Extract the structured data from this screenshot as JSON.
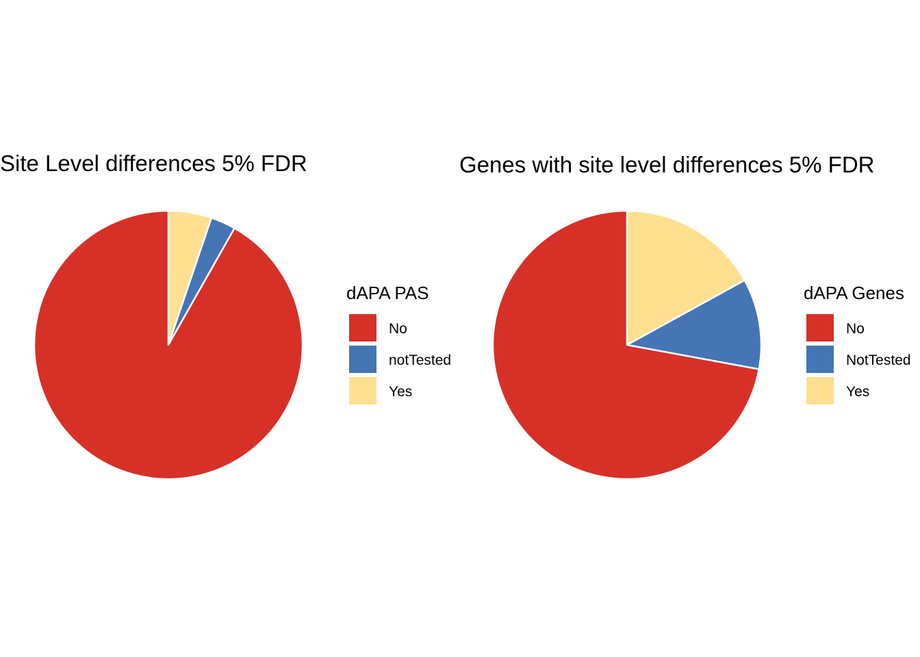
{
  "chart_data": [
    {
      "type": "pie",
      "title": "Site Level differences 5% FDR",
      "legend_title": "dAPA PAS",
      "legend_position": "right",
      "start_angle": "12 o'clock, clockwise",
      "slices": [
        {
          "label": "Yes",
          "value": 5.2,
          "color": "#FEE090"
        },
        {
          "label": "notTested",
          "value": 3.0,
          "color": "#4575B4"
        },
        {
          "label": "No",
          "value": 91.8,
          "color": "#D73027"
        }
      ],
      "legend_order": [
        "No",
        "notTested",
        "Yes"
      ]
    },
    {
      "type": "pie",
      "title": "Genes with site level differences 5% FDR",
      "legend_title": "dAPA Genes",
      "legend_position": "right",
      "start_angle": "12 o'clock, clockwise",
      "slices": [
        {
          "label": "Yes",
          "value": 17.0,
          "color": "#FEE090"
        },
        {
          "label": "NotTested",
          "value": 10.9,
          "color": "#4575B4"
        },
        {
          "label": "No",
          "value": 72.1,
          "color": "#D73027"
        }
      ],
      "legend_order": [
        "No",
        "NotTested",
        "Yes"
      ]
    }
  ]
}
